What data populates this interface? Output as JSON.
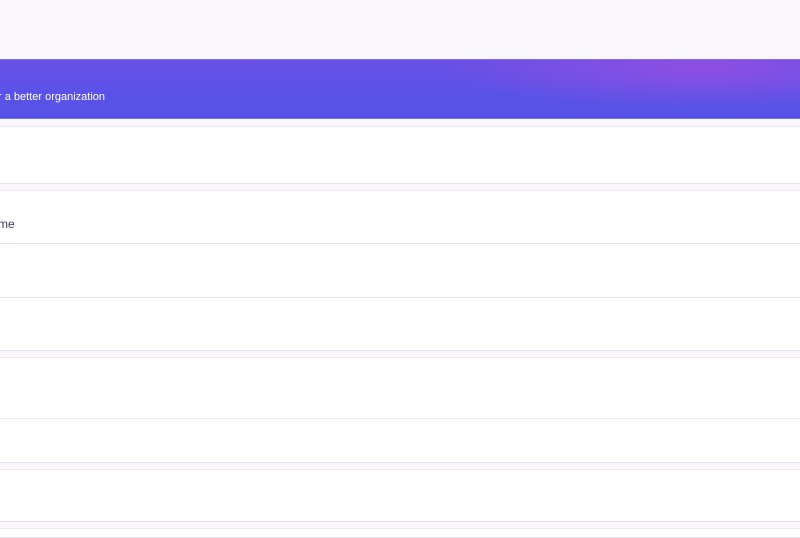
{
  "banner": {
    "subtitle": "r a better organization",
    "gradient_colors": [
      "#5a52e8",
      "#8e4fe3"
    ]
  },
  "cards": [
    {
      "rows": [
        ""
      ]
    },
    {
      "rows": [
        "me",
        "",
        ""
      ]
    },
    {
      "rows": [
        "",
        ""
      ]
    },
    {
      "rows": [
        ""
      ]
    }
  ]
}
